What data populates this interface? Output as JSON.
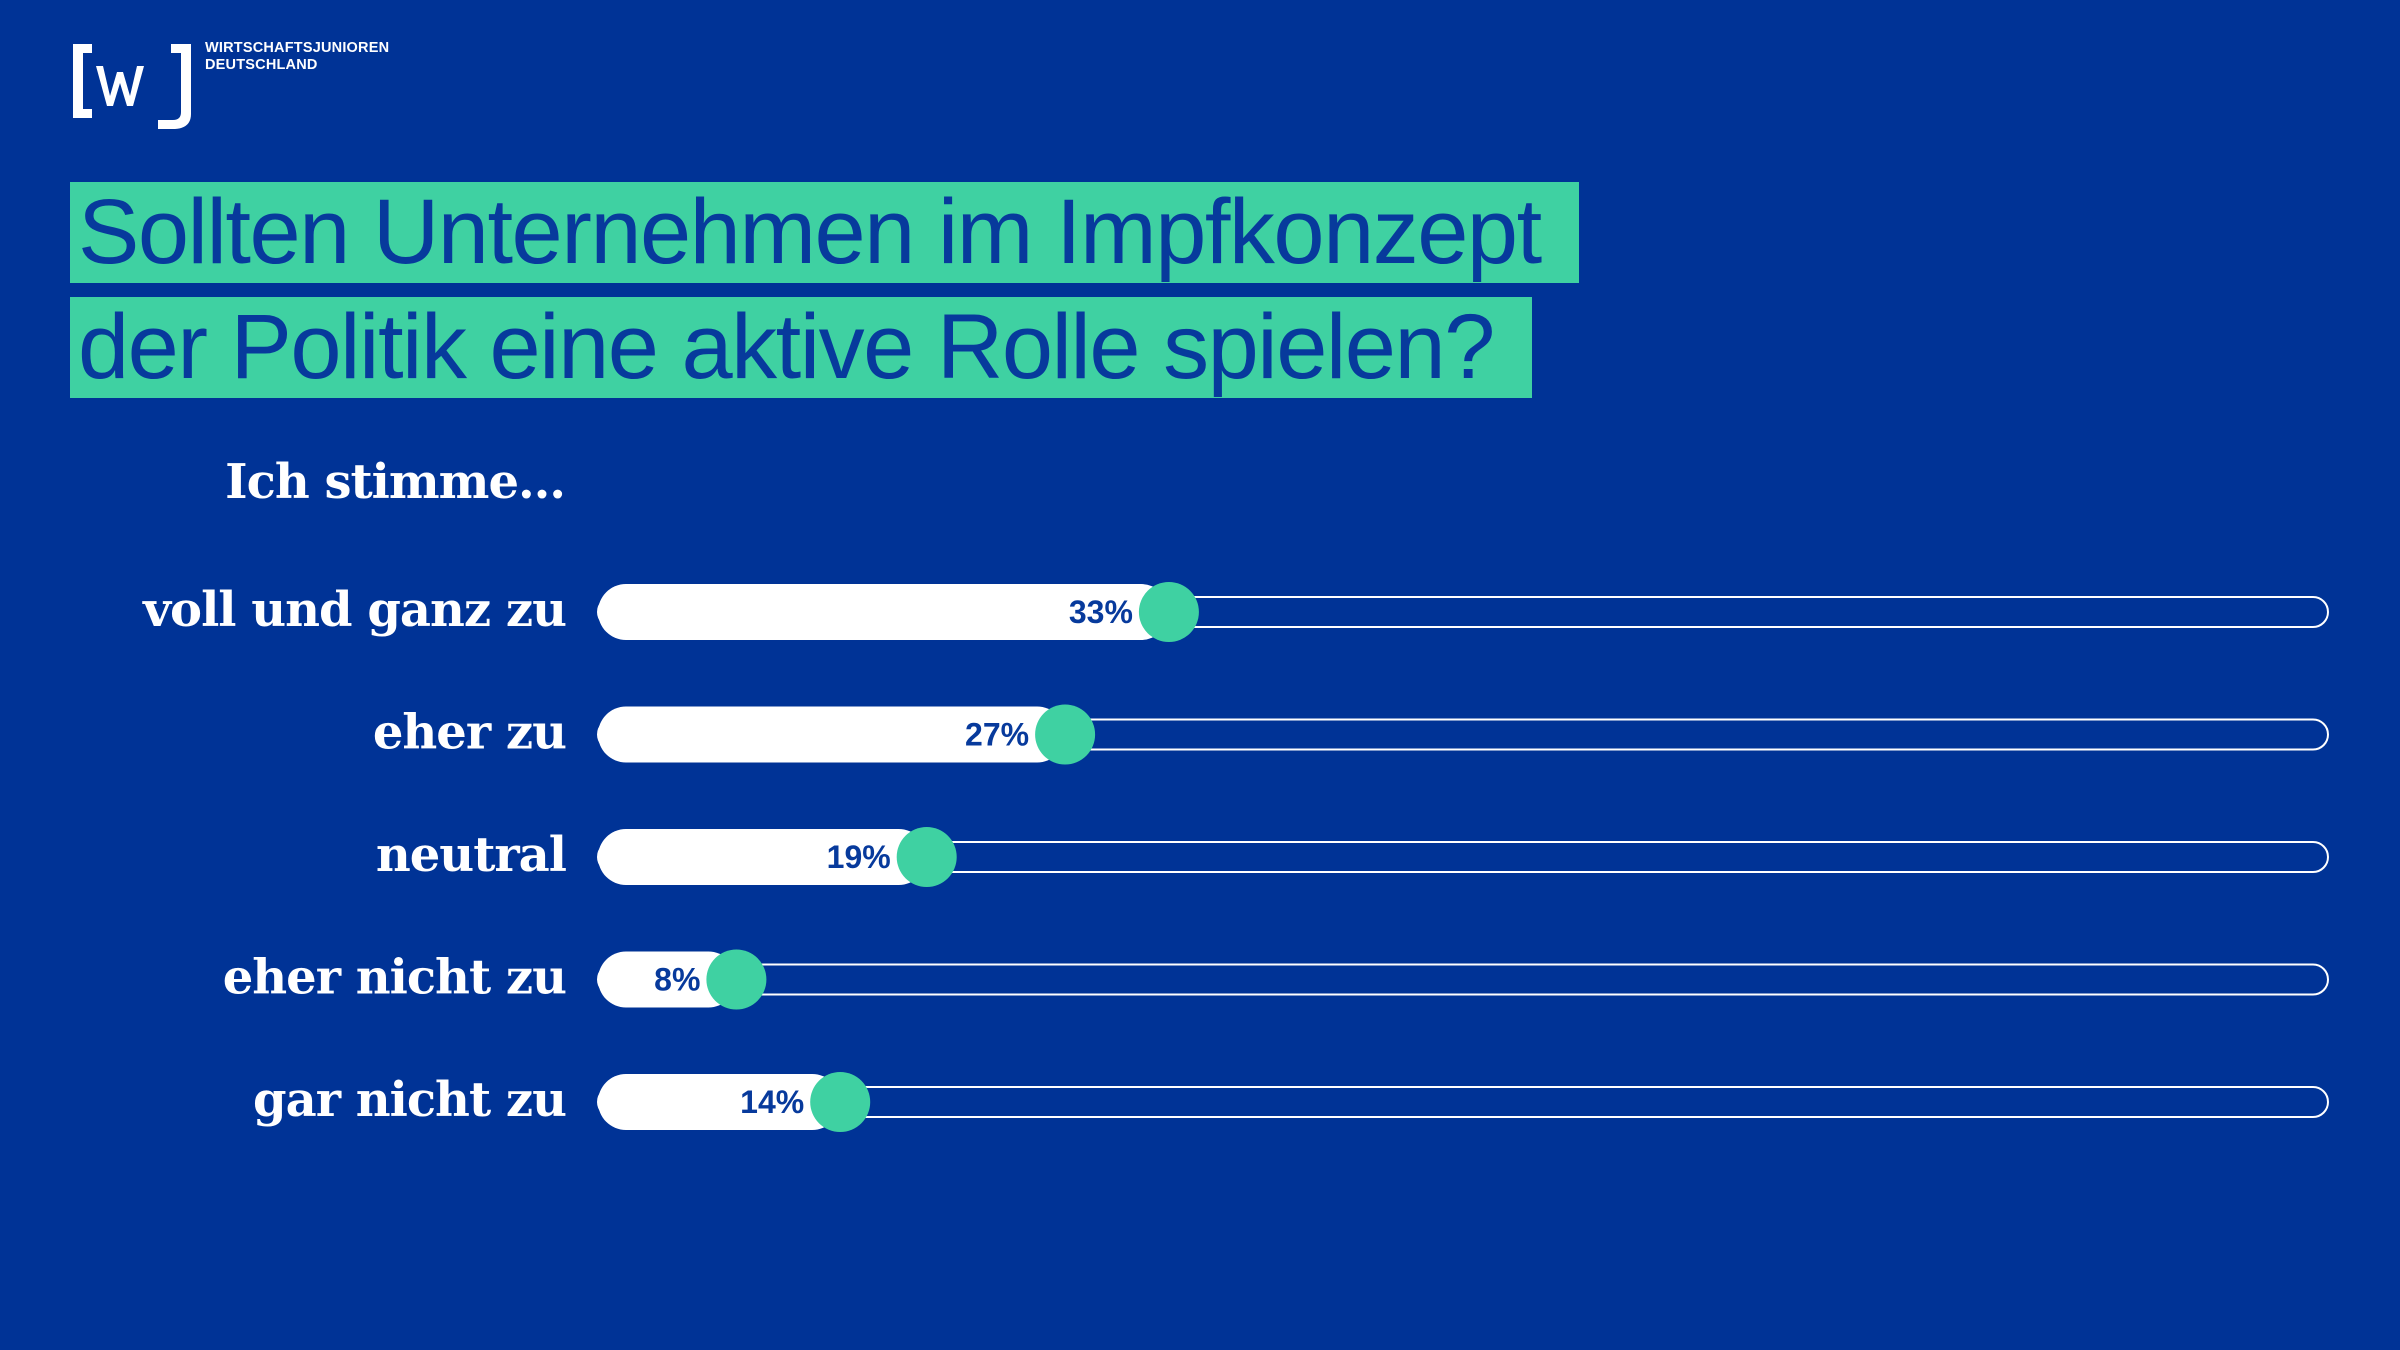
{
  "logo": {
    "mark": "[wj]",
    "line1": "WIRTSCHAFTSJUNIOREN",
    "line2": "DEUTSCHLAND"
  },
  "headline": {
    "line1": "Sollten Unternehmen im Impfkonzept",
    "line2": "der Politik eine aktive Rolle spielen?"
  },
  "intro": "Ich stimme…",
  "colors": {
    "background": "#003396",
    "accent": "#3fd1a2",
    "bar_fill": "#ffffff",
    "value_text": "#073a9c"
  },
  "chart_data": {
    "type": "bar",
    "orientation": "horizontal",
    "categories": [
      "voll und ganz zu",
      "eher zu",
      "neutral",
      "eher nicht zu",
      "gar nicht zu"
    ],
    "values": [
      33,
      27,
      19,
      8,
      14
    ],
    "value_labels": [
      "33%",
      "27%",
      "19%",
      "8%",
      "14%"
    ],
    "unit": "%",
    "xlim": [
      0,
      100
    ],
    "grid": false
  }
}
